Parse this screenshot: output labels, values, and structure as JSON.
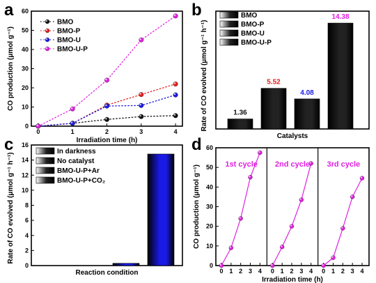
{
  "panels": {
    "a": {
      "letter": "a"
    },
    "b": {
      "letter": "b"
    },
    "c": {
      "letter": "c"
    },
    "d": {
      "letter": "d"
    }
  },
  "chart_data": [
    {
      "id": "a",
      "type": "line",
      "xlabel": "Irradiation time (h)",
      "ylabel": "CO production (μmol g⁻¹)",
      "xlim": [
        -0.2,
        4.2
      ],
      "ylim": [
        0,
        60
      ],
      "xticks": [
        0,
        1,
        2,
        3,
        4
      ],
      "yticks": [
        0,
        10,
        20,
        30,
        40,
        50,
        60
      ],
      "legend_position": "top-left",
      "grid": false,
      "x": [
        0,
        1,
        2,
        3,
        4
      ],
      "series": [
        {
          "name": "BMO",
          "color": "#111111",
          "values": [
            0,
            1.5,
            3.5,
            5.0,
            5.5
          ]
        },
        {
          "name": "BMO-P",
          "color": "#e02020",
          "values": [
            0,
            1.5,
            11.0,
            16.5,
            22.0
          ]
        },
        {
          "name": "BMO-U",
          "color": "#1a1ae0",
          "values": [
            0,
            1.5,
            10.5,
            10.8,
            16.3
          ]
        },
        {
          "name": "BMO-U-P",
          "color": "#e020e0",
          "values": [
            0,
            9.0,
            24.0,
            45.0,
            57.5
          ]
        }
      ]
    },
    {
      "id": "b",
      "type": "bar",
      "xlabel": "Catalysts",
      "ylabel": "Rate of CO evolved (μmol g⁻¹ h⁻¹)",
      "ylim": [
        0,
        16
      ],
      "legend_position": "top-left",
      "grid": false,
      "categories": [
        "BMO",
        "BMO-P",
        "BMO-U",
        "BMO-U-P"
      ],
      "values": [
        1.36,
        5.52,
        4.08,
        14.38
      ],
      "value_labels": [
        "1.36",
        "5.52",
        "4.08",
        "14.38"
      ],
      "colors": [
        "#222222",
        "#e01818",
        "#1a1ae6",
        "#e020e0"
      ],
      "label_colors": [
        "#111111",
        "#e01818",
        "#1a1ae6",
        "#e020e0"
      ]
    },
    {
      "id": "c",
      "type": "bar",
      "xlabel": "Reaction condition",
      "ylabel": "Rate of CO evolved (μmol g⁻¹ h⁻¹)",
      "ylim": [
        0,
        16
      ],
      "yticks": [
        0,
        2,
        4,
        6,
        8,
        10,
        12,
        14,
        16
      ],
      "legend_position": "top-left",
      "grid": false,
      "categories": [
        "In darkness",
        "No catalyst",
        "BMO-U-P+Ar",
        "BMO-U-P+CO₂"
      ],
      "values": [
        0,
        0,
        0.3,
        14.8
      ],
      "colors": [
        "#222222",
        "#e01818",
        "#1a1ae6",
        "#e020e0"
      ]
    },
    {
      "id": "d",
      "type": "line",
      "xlabel": "Irradiation time (h)",
      "ylabel": "CO production (μmol g⁻¹)",
      "ylim": [
        0,
        60
      ],
      "yticks": [
        0,
        10,
        20,
        30,
        40,
        50,
        60
      ],
      "grid": false,
      "color": "#e020e0",
      "cycles": [
        {
          "name": "1st cycle",
          "x": [
            0,
            1,
            2,
            3,
            4
          ],
          "values": [
            0,
            9.0,
            24.0,
            45.0,
            57.5
          ]
        },
        {
          "name": "2nd cycle",
          "x": [
            0,
            1,
            2,
            3,
            4
          ],
          "values": [
            0,
            9.5,
            20.0,
            33.5,
            52.0
          ]
        },
        {
          "name": "3rd cycle",
          "x": [
            0,
            1,
            2,
            3,
            4
          ],
          "values": [
            0,
            4.0,
            19.0,
            35.0,
            44.5
          ]
        }
      ]
    }
  ]
}
